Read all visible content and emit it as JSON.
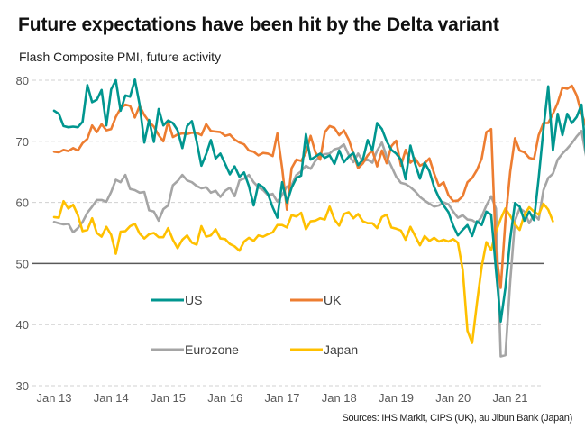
{
  "chart_data": {
    "type": "line",
    "title": "Future expectations have been hit by the Delta variant",
    "subtitle": "Flash Composite PMI, future activity",
    "source": "Sources: IHS Markit, CIPS (UK), au Jibun Bank (Japan)",
    "xlabel": "",
    "ylabel": "",
    "ylim": [
      30,
      80
    ],
    "yticks": [
      30,
      40,
      50,
      60,
      70,
      80
    ],
    "x_start": "Jan 2013",
    "x_frequency": "monthly",
    "xtick_labels": [
      "Jan 13",
      "Jan 14",
      "Jan 15",
      "Jan 16",
      "Jan 17",
      "Jan 18",
      "Jan 19",
      "Jan 20",
      "Jan 21"
    ],
    "reference_line": 50,
    "grid": true,
    "legend_position": "inside-bottom-left",
    "series": [
      {
        "name": "US",
        "color": "#00968F",
        "values": [
          75,
          74.5,
          72.5,
          72.3,
          72.4,
          72.3,
          73.2,
          79.2,
          76.4,
          76.8,
          78.4,
          72.6,
          78.5,
          80,
          75,
          77.5,
          77.3,
          80.1,
          76,
          69.8,
          73.5,
          69.9,
          75.3,
          72.6,
          73.4,
          73,
          71.8,
          68.9,
          72.5,
          73.3,
          70,
          66,
          67.9,
          70.2,
          67.2,
          68,
          66.3,
          64.6,
          65.9,
          64.2,
          64.9,
          62.7,
          59.5,
          63,
          62.5,
          61.4,
          59.2,
          57.5,
          63.3,
          60,
          62.4,
          64,
          64.4,
          71.2,
          67,
          67.5,
          68,
          67.3,
          67.7,
          66.3,
          68.5,
          66.6,
          67.5,
          68.1,
          66.1,
          67,
          70.2,
          68.5,
          73,
          72,
          70,
          68.6,
          68,
          67,
          63.8,
          69.3,
          66.3,
          63.9,
          66.5,
          65.1,
          62.5,
          60.8,
          59.5,
          58.4,
          56.2,
          54.6,
          55.5,
          56.3,
          54.5,
          56.9,
          56.3,
          58.5,
          58,
          49,
          40.5,
          46,
          54,
          59.9,
          59.3,
          57,
          58.5,
          57.1,
          64,
          72,
          79,
          68.5,
          74.5,
          71,
          74.5,
          73,
          74,
          76,
          67.8
        ]
      },
      {
        "name": "UK",
        "color": "#ED7D31",
        "values": [
          68.3,
          68.2,
          68.6,
          68.4,
          68.9,
          68.5,
          69.7,
          70.4,
          72.6,
          71.5,
          72.8,
          71.8,
          72,
          74,
          75.4,
          76,
          75.8,
          73.9,
          75.8,
          74.3,
          73.2,
          72.4,
          71,
          70,
          73.2,
          70.7,
          71.1,
          71.3,
          71.2,
          71.4,
          71.4,
          71,
          72.8,
          71.7,
          71.6,
          71.5,
          70.9,
          71.1,
          70.3,
          69.8,
          69.5,
          68.5,
          68.3,
          67.7,
          68.1,
          68,
          67.6,
          71.3,
          65.6,
          58.8,
          65.6,
          67,
          66.8,
          68.1,
          70.9,
          68.2,
          67,
          71.5,
          72.5,
          72.2,
          71,
          71.8,
          70.3,
          68,
          65.6,
          66.4,
          67.7,
          68.5,
          65.9,
          68.5,
          66.4,
          69.2,
          70.1,
          66,
          68.6,
          66.5,
          67.2,
          66,
          66.4,
          67.2,
          64.7,
          62.7,
          63.3,
          61.2,
          60.2,
          60.3,
          61,
          63.3,
          64,
          65.3,
          67.2,
          71.5,
          72,
          52,
          46,
          57,
          65,
          70.5,
          68.5,
          68.2,
          67.3,
          67.1,
          71,
          73,
          73,
          74.5,
          76.3,
          78.8,
          78.6,
          79.1,
          77.5,
          74.6,
          72.5
        ]
      },
      {
        "name": "Eurozone",
        "color": "#A5A5A5",
        "values": [
          56.8,
          56.6,
          56.4,
          56.5,
          55.1,
          55.8,
          56.8,
          58.3,
          59.3,
          60.4,
          60.4,
          60.1,
          61.7,
          63.7,
          63.3,
          64.5,
          62.2,
          62,
          61.6,
          61.7,
          58.7,
          58.5,
          57,
          58.9,
          59.5,
          62.8,
          63.5,
          64.5,
          63.6,
          63.3,
          62.7,
          62.3,
          62.5,
          61.6,
          61.9,
          60.9,
          61.9,
          62.4,
          61,
          63.6,
          63.9,
          64.5,
          63.3,
          62.5,
          62,
          61.2,
          61.4,
          60.1,
          61.2,
          62.6,
          62.8,
          64.5,
          65.1,
          66,
          65.5,
          66.8,
          67.6,
          67.9,
          68,
          68.7,
          68.9,
          69.5,
          67.8,
          66.6,
          68,
          66.7,
          67,
          66.5,
          68.5,
          69.8,
          67.5,
          65.9,
          64.2,
          63.2,
          63,
          62.5,
          61.8,
          60.9,
          60.3,
          59.8,
          59.3,
          59.5,
          60,
          59.7,
          58.5,
          57.5,
          57.9,
          57.2,
          57.1,
          56.6,
          57.7,
          59.5,
          61,
          59,
          34.8,
          35,
          47,
          57,
          59,
          58.5,
          56.6,
          58,
          57.2,
          62,
          64,
          64.7,
          67,
          68,
          68.8,
          69.7,
          70.8,
          71.7,
          67.5
        ]
      },
      {
        "name": "Japan",
        "color": "#FFC000",
        "values": [
          57.6,
          57.5,
          60.2,
          59,
          59.6,
          57.9,
          55.3,
          55.5,
          57.4,
          55,
          54.4,
          56,
          54.7,
          51.6,
          55.2,
          55.3,
          56.1,
          56.5,
          54.9,
          54.1,
          54.8,
          55,
          54.3,
          54.3,
          55.8,
          53.9,
          52.5,
          53.9,
          54.6,
          53.4,
          53.1,
          56.1,
          54.4,
          54.6,
          55.6,
          54.1,
          54,
          53.2,
          52.8,
          52.1,
          53.6,
          54.2,
          53.7,
          54.6,
          54.4,
          54.8,
          55.1,
          56.3,
          56.3,
          55.9,
          57.9,
          57.7,
          58.3,
          55.6,
          56.9,
          57,
          57.4,
          57.2,
          59.3,
          57.2,
          56.2,
          58.1,
          58.4,
          57.4,
          58.1,
          56.9,
          56.6,
          56.6,
          55.8,
          57.6,
          58,
          55.9,
          55.7,
          55.4,
          53.9,
          56,
          54.5,
          53,
          54.5,
          53.7,
          54.2,
          53.6,
          53.9,
          53.6,
          54,
          53.4,
          49,
          39,
          37,
          43.5,
          49.5,
          53.5,
          52.2,
          55.2,
          57.3,
          59,
          57.8,
          56.4,
          55.5,
          58,
          59.2,
          58.5,
          58,
          59.8,
          58.8,
          56.9
        ]
      }
    ]
  }
}
